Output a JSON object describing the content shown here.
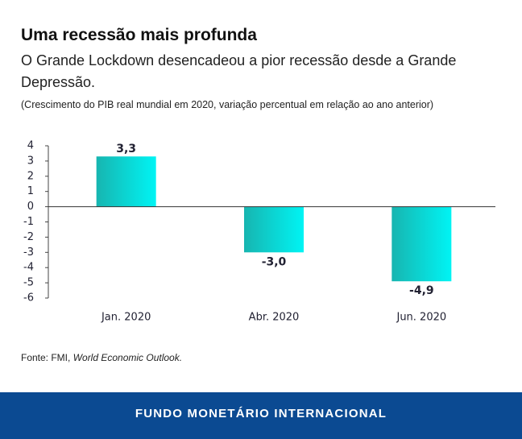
{
  "chart_data": {
    "type": "bar",
    "title": "Uma recessão mais profunda",
    "subtitle": "O Grande Lockdown desencadeou a pior recessão desde a Grande Depressão.",
    "note": "(Crescimento do PIB real mundial em 2020, variação percentual em relação ao ano anterior)",
    "categories": [
      "Jan. 2020",
      "Abr. 2020",
      "Jun. 2020"
    ],
    "values": [
      3.3,
      -3.0,
      -4.9
    ],
    "value_labels": [
      "3,3",
      "-3,0",
      "-4,9"
    ],
    "gradient": [
      "#17b5b0",
      "#00f4f4"
    ],
    "ylim": [
      -6,
      4
    ],
    "yticks": [
      4,
      3,
      2,
      1,
      0,
      -1,
      -2,
      -3,
      -4,
      -5,
      -6
    ],
    "source": "Fonte: FMI, ",
    "source_publication": "World Economic Outlook."
  },
  "footer": "FUNDO MONETÁRIO INTERNACIONAL"
}
